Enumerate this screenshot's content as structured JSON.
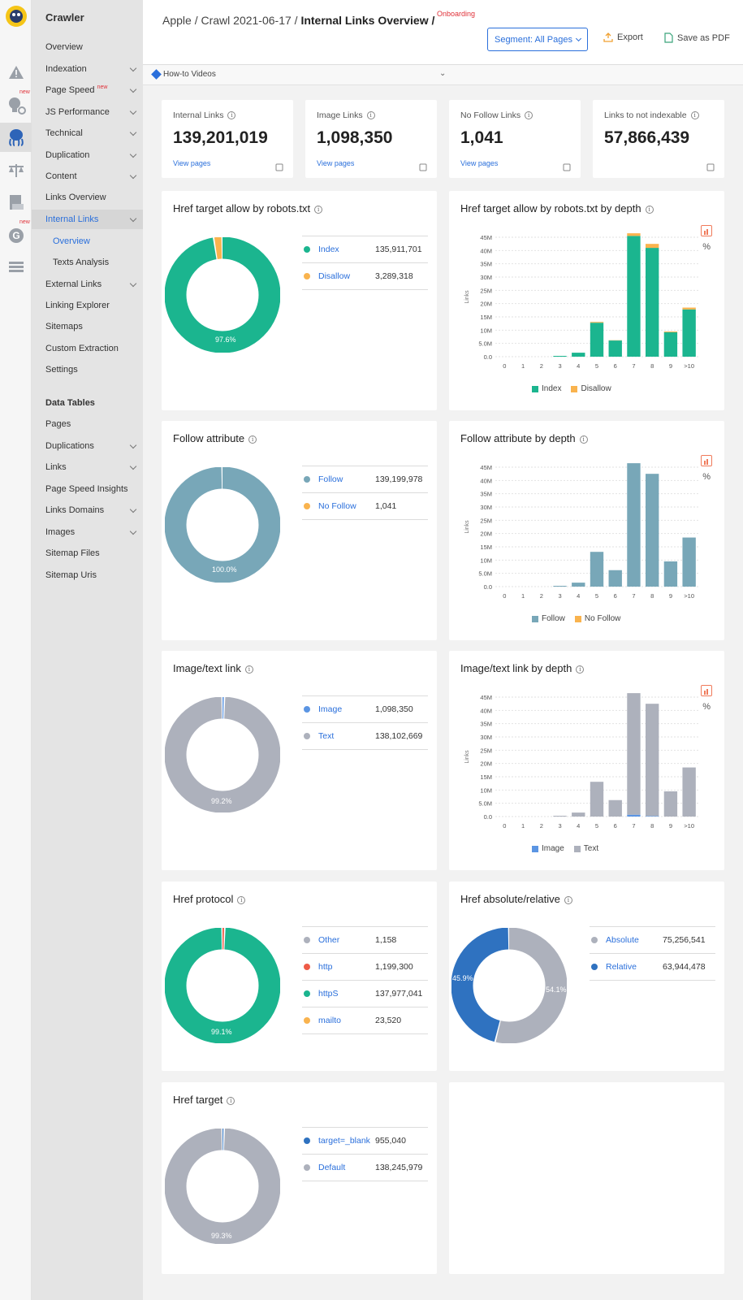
{
  "app": {
    "name": "Crawler",
    "new_label": "new"
  },
  "nav": {
    "items": [
      {
        "label": "Overview",
        "y": 58
      },
      {
        "label": "Indexation",
        "y": 85,
        "chev": true
      },
      {
        "label": "Page Speed",
        "y": 111,
        "chev": true,
        "new": true
      },
      {
        "label": "JS Performance",
        "y": 138,
        "chev": true
      },
      {
        "label": "Technical",
        "y": 164,
        "chev": true
      },
      {
        "label": "Duplication",
        "y": 191,
        "chev": true
      },
      {
        "label": "Content",
        "y": 217,
        "chev": true
      },
      {
        "label": "Links Overview",
        "y": 243
      },
      {
        "label": "Internal Links",
        "y": 270,
        "chev": true,
        "sel": true
      },
      {
        "label": "Overview",
        "y": 297,
        "sub": true,
        "subsel": true
      },
      {
        "label": "Texts Analysis",
        "y": 323,
        "sub": true
      },
      {
        "label": "External Links",
        "y": 350,
        "chev": true
      },
      {
        "label": "Linking Explorer",
        "y": 376
      },
      {
        "label": "Sitemaps",
        "y": 402
      },
      {
        "label": "Custom Extraction",
        "y": 429
      },
      {
        "label": "Settings",
        "y": 455
      },
      {
        "label": "Data Tables",
        "y": 496,
        "hdr": true
      },
      {
        "label": "Pages",
        "y": 522
      },
      {
        "label": "Duplications",
        "y": 549,
        "chev": true
      },
      {
        "label": "Links",
        "y": 575,
        "chev": true
      },
      {
        "label": "Page Speed Insights",
        "y": 602
      },
      {
        "label": "Links Domains",
        "y": 628,
        "chev": true
      },
      {
        "label": "Images",
        "y": 655,
        "chev": true
      },
      {
        "label": "Sitemap Files",
        "y": 681
      },
      {
        "label": "Sitemap Uris",
        "y": 708
      }
    ]
  },
  "breadcrumb": {
    "p1": "Apple /",
    "p2": "Crawl 2021-06-17 /",
    "p3": "Internal Links Overview /",
    "tag": "Onboarding"
  },
  "toolbar": {
    "segment": "Segment: All Pages",
    "export": "Export",
    "pdf": "Save as PDF"
  },
  "howto": "How-to Videos",
  "kpis": [
    {
      "title": "Internal Links",
      "value": "139,201,019",
      "link": "View pages"
    },
    {
      "title": "Image Links",
      "value": "1,098,350",
      "link": "View pages"
    },
    {
      "title": "No Follow Links",
      "value": "1,041",
      "link": "View pages"
    },
    {
      "title": "Links to not indexable",
      "value": "57,866,439",
      "link": ""
    }
  ],
  "colors": {
    "green": "#1bb58f",
    "orange": "#f9b34e",
    "steel": "#78a7b8",
    "grey": "#adb1bc",
    "blue": "#5b95e3",
    "red": "#ee5b47",
    "darkblue": "#2f72c0",
    "link": "#2a6fdb"
  },
  "cards": {
    "robots": {
      "title": "Href target allow by robots.txt",
      "pct": "97.6%",
      "legend": [
        {
          "name": "Index",
          "value": "135,911,701",
          "color": "#1bb58f"
        },
        {
          "name": "Disallow",
          "value": "3,289,318",
          "color": "#f9b34e"
        }
      ]
    },
    "robots_depth": {
      "title": "Href target allow by robots.txt by depth"
    },
    "follow": {
      "title": "Follow attribute",
      "pct": "100.0%",
      "legend": [
        {
          "name": "Follow",
          "value": "139,199,978",
          "color": "#78a7b8"
        },
        {
          "name": "No Follow",
          "value": "1,041",
          "color": "#f9b34e"
        }
      ]
    },
    "follow_depth": {
      "title": "Follow attribute by depth"
    },
    "image": {
      "title": "Image/text link",
      "pct": "99.2%",
      "legend": [
        {
          "name": "Image",
          "value": "1,098,350",
          "color": "#5b95e3"
        },
        {
          "name": "Text",
          "value": "138,102,669",
          "color": "#adb1bc"
        }
      ]
    },
    "image_depth": {
      "title": "Image/text link by depth"
    },
    "protocol": {
      "title": "Href protocol",
      "pct": "99.1%",
      "legend": [
        {
          "name": "Other",
          "value": "1,158",
          "color": "#adb1bc"
        },
        {
          "name": "http",
          "value": "1,199,300",
          "color": "#ee5b47"
        },
        {
          "name": "httpS",
          "value": "137,977,041",
          "color": "#1bb58f"
        },
        {
          "name": "mailto",
          "value": "23,520",
          "color": "#f9b34e"
        }
      ]
    },
    "absrel": {
      "title": "Href absolute/relative",
      "pct_a": "54.1%",
      "pct_b": "45.9%",
      "legend": [
        {
          "name": "Absolute",
          "value": "75,256,541",
          "color": "#adb1bc"
        },
        {
          "name": "Relative",
          "value": "63,944,478",
          "color": "#2f72c0"
        }
      ]
    },
    "target": {
      "title": "Href target",
      "pct": "99.3%",
      "legend": [
        {
          "name": "target=_blank",
          "value": "955,040",
          "color": "#2f72c0"
        },
        {
          "name": "Default",
          "value": "138,245,979",
          "color": "#adb1bc"
        }
      ]
    }
  },
  "chart_data": [
    {
      "type": "bar",
      "stacked": true,
      "title": "Href target allow by robots.txt by depth",
      "ylabel": "Links",
      "categories": [
        "0",
        "1",
        "2",
        "3",
        "4",
        "5",
        "6",
        "7",
        "8",
        "9",
        ">10"
      ],
      "ylim": [
        0,
        45000000
      ],
      "y_ticks": [
        "0.0",
        "5.0M",
        "10M",
        "15M",
        "20M",
        "25M",
        "30M",
        "35M",
        "40M",
        "45M"
      ],
      "series": [
        {
          "name": "Index",
          "values": [
            0,
            0,
            0,
            300000,
            1500000,
            12800000,
            6100000,
            45500000,
            41000000,
            9200000,
            17800000
          ]
        },
        {
          "name": "Disallow",
          "values": [
            0,
            0,
            0,
            0,
            0,
            300000,
            100000,
            1000000,
            1500000,
            300000,
            700000
          ]
        }
      ]
    },
    {
      "type": "bar",
      "stacked": true,
      "title": "Follow attribute by depth",
      "ylabel": "Links",
      "categories": [
        "0",
        "1",
        "2",
        "3",
        "4",
        "5",
        "6",
        "7",
        "8",
        "9",
        ">10"
      ],
      "ylim": [
        0,
        45000000
      ],
      "y_ticks": [
        "0.0",
        "5.0M",
        "10M",
        "15M",
        "20M",
        "25M",
        "30M",
        "35M",
        "40M",
        "45M"
      ],
      "series": [
        {
          "name": "Follow",
          "values": [
            0,
            0,
            0,
            300000,
            1500000,
            13100000,
            6200000,
            46500000,
            42500000,
            9500000,
            18500000
          ]
        },
        {
          "name": "No Follow",
          "values": [
            0,
            0,
            0,
            0,
            0,
            0,
            0,
            0,
            0,
            0,
            0
          ]
        }
      ]
    },
    {
      "type": "bar",
      "stacked": true,
      "title": "Image/text link by depth",
      "ylabel": "Links",
      "categories": [
        "0",
        "1",
        "2",
        "3",
        "4",
        "5",
        "6",
        "7",
        "8",
        "9",
        ">10"
      ],
      "ylim": [
        0,
        45000000
      ],
      "y_ticks": [
        "0.0",
        "5.0M",
        "10M",
        "15M",
        "20M",
        "25M",
        "30M",
        "35M",
        "40M",
        "45M"
      ],
      "series": [
        {
          "name": "Image",
          "values": [
            0,
            0,
            0,
            0,
            0,
            0,
            0,
            700000,
            200000,
            0,
            0
          ]
        },
        {
          "name": "Text",
          "values": [
            0,
            0,
            0,
            300000,
            1500000,
            13100000,
            6200000,
            45800000,
            42300000,
            9500000,
            18500000
          ]
        }
      ]
    }
  ]
}
